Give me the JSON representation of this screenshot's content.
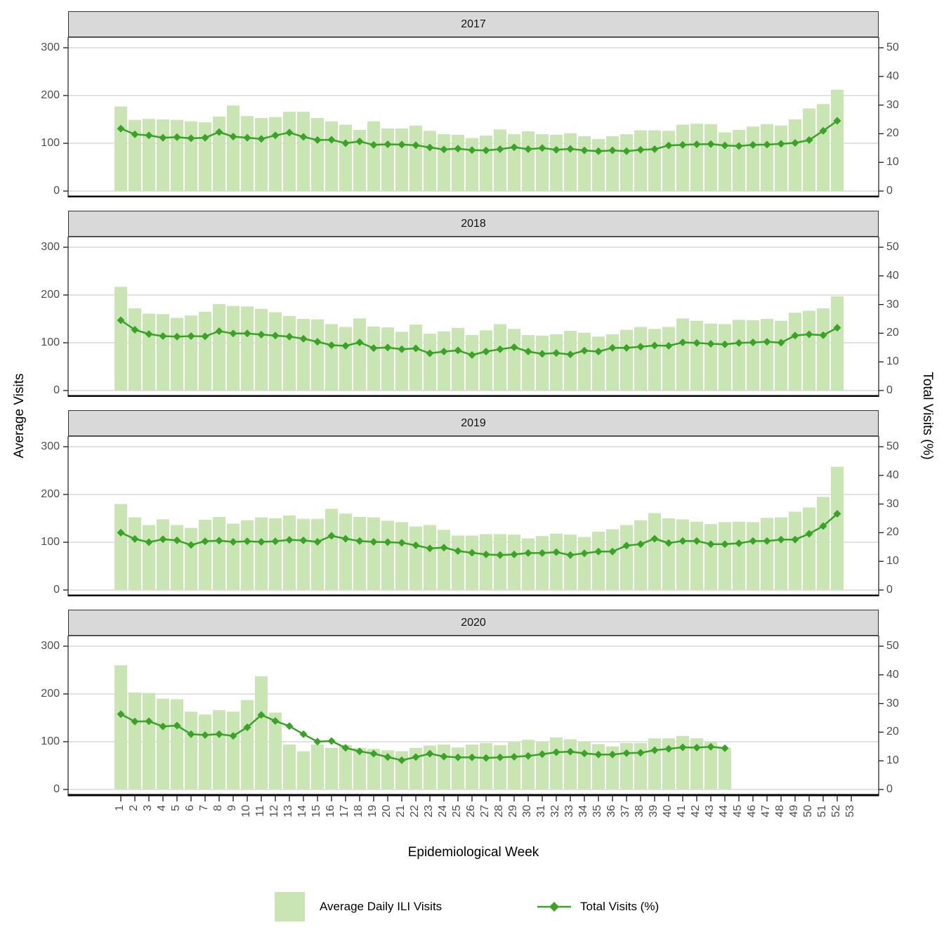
{
  "figure": {
    "x_axis_title": "Epidemiological Week",
    "y_axis_title_left": "Average Visits",
    "y_axis_title_right": "Total Visits (%)"
  },
  "legend": {
    "bar_label": "Average Daily ILI Visits",
    "line_label": "Total Visits (%)"
  },
  "colors": {
    "bar_fill": "#c9e5b3",
    "line": "#3aa327",
    "strip_bg": "#d9d9d9",
    "grid": "#d9d9d9",
    "axis_text": "#4d4d4d",
    "panel_border": "#2b2b2b",
    "axis_line": "#000000"
  },
  "chart_data": {
    "type": "bar",
    "subtype": "bar+line faceted by year",
    "xlabel": "Epidemiological Week",
    "ylabel_left": "Average Visits",
    "ylabel_right": "Total Visits (%)",
    "ylim_left": [
      0,
      300
    ],
    "ylim_right": [
      0,
      50
    ],
    "y_ticks_left": [
      "300",
      "200",
      "100",
      "0"
    ],
    "y_ticks_right": [
      "50",
      "40",
      "30",
      "20",
      "10",
      "0"
    ],
    "x_ticks": [
      "1",
      "2",
      "3",
      "4",
      "5",
      "6",
      "7",
      "8",
      "9",
      "10",
      "11",
      "12",
      "13",
      "14",
      "15",
      "16",
      "17",
      "18",
      "19",
      "20",
      "21",
      "22",
      "23",
      "24",
      "25",
      "26",
      "27",
      "28",
      "29",
      "30",
      "31",
      "32",
      "33",
      "34",
      "35",
      "36",
      "37",
      "38",
      "39",
      "40",
      "41",
      "42",
      "43",
      "44",
      "45",
      "46",
      "47",
      "48",
      "49",
      "50",
      "51",
      "52",
      "53"
    ],
    "grid": "horizontal major only",
    "legend_position": "bottom",
    "series_bar_name": "Average Daily ILI Visits",
    "series_line_name": "Total Visits (%)",
    "panels": [
      {
        "year": "2017",
        "week_start": 1,
        "bars": [
          177,
          149,
          151,
          150,
          149,
          146,
          144,
          156,
          179,
          157,
          153,
          155,
          166,
          166,
          153,
          146,
          139,
          128,
          146,
          131,
          131,
          137,
          126,
          119,
          118,
          111,
          116,
          129,
          119,
          125,
          119,
          118,
          121,
          115,
          109,
          115,
          119,
          127,
          127,
          126,
          139,
          141,
          140,
          123,
          128,
          135,
          140,
          137,
          150,
          173,
          182,
          212
        ],
        "line_pct": [
          21.8,
          19.8,
          19.4,
          18.6,
          18.8,
          18.4,
          18.6,
          20.6,
          19.0,
          18.6,
          18.2,
          19.4,
          20.4,
          18.9,
          17.8,
          17.9,
          16.7,
          17.3,
          16.1,
          16.3,
          16.2,
          16.0,
          15.2,
          14.5,
          14.8,
          14.3,
          14.2,
          14.6,
          15.3,
          14.6,
          15.0,
          14.4,
          14.7,
          14.2,
          13.9,
          14.2,
          13.9,
          14.4,
          14.6,
          15.9,
          16.1,
          16.3,
          16.4,
          15.9,
          15.7,
          16.1,
          16.2,
          16.5,
          16.8,
          17.8,
          21.0,
          24.5
        ]
      },
      {
        "year": "2018",
        "week_start": 1,
        "bars": [
          217,
          172,
          161,
          160,
          152,
          157,
          165,
          181,
          177,
          176,
          171,
          164,
          156,
          150,
          149,
          139,
          133,
          151,
          134,
          132,
          123,
          138,
          119,
          124,
          131,
          116,
          126,
          139,
          129,
          116,
          115,
          118,
          125,
          121,
          113,
          118,
          127,
          133,
          129,
          133,
          151,
          146,
          140,
          139,
          148,
          147,
          150,
          146,
          163,
          167,
          172,
          197
        ],
        "line_pct": [
          24.5,
          21.2,
          19.7,
          19.0,
          18.8,
          19.0,
          18.9,
          20.7,
          19.9,
          19.9,
          19.5,
          19.2,
          18.8,
          18.1,
          17.0,
          15.8,
          15.6,
          16.8,
          14.8,
          15.0,
          14.4,
          14.7,
          13.0,
          13.6,
          14.0,
          12.4,
          13.6,
          14.4,
          15.1,
          13.6,
          12.8,
          13.1,
          12.6,
          13.9,
          13.6,
          14.9,
          14.9,
          15.3,
          15.7,
          15.6,
          16.8,
          16.6,
          16.3,
          16.1,
          16.6,
          16.8,
          17.0,
          16.7,
          19.2,
          19.6,
          19.3,
          21.9
        ]
      },
      {
        "year": "2019",
        "week_start": 1,
        "bars": [
          180,
          152,
          136,
          148,
          136,
          130,
          147,
          153,
          139,
          146,
          152,
          150,
          156,
          149,
          149,
          170,
          160,
          153,
          152,
          145,
          142,
          133,
          136,
          126,
          114,
          114,
          117,
          117,
          116,
          108,
          113,
          118,
          116,
          111,
          122,
          127,
          136,
          146,
          161,
          150,
          148,
          143,
          138,
          142,
          143,
          142,
          151,
          152,
          164,
          173,
          195,
          258
        ],
        "line_pct": [
          20.0,
          17.8,
          16.7,
          17.7,
          17.3,
          15.7,
          17.0,
          17.2,
          16.8,
          17.0,
          16.8,
          17.0,
          17.5,
          17.3,
          16.8,
          18.9,
          17.9,
          17.1,
          16.8,
          16.7,
          16.5,
          15.6,
          14.5,
          14.8,
          13.6,
          13.0,
          12.4,
          12.2,
          12.4,
          12.9,
          12.9,
          13.2,
          12.2,
          12.8,
          13.4,
          13.4,
          15.5,
          16.0,
          17.9,
          16.4,
          17.1,
          17.1,
          16.0,
          16.0,
          16.3,
          17.1,
          17.1,
          17.6,
          17.6,
          19.6,
          22.3,
          26.6
        ]
      },
      {
        "year": "2020",
        "week_start": 1,
        "bars": [
          260,
          203,
          202,
          190,
          189,
          163,
          157,
          166,
          163,
          187,
          237,
          161,
          94,
          80,
          94,
          87,
          93,
          87,
          85,
          82,
          80,
          87,
          92,
          94,
          88,
          94,
          97,
          93,
          99,
          104,
          100,
          109,
          105,
          100,
          95,
          90,
          97,
          97,
          107,
          107,
          112,
          107,
          100,
          87
        ],
        "line_pct": [
          26.3,
          23.7,
          23.8,
          22.0,
          22.3,
          19.3,
          19.0,
          19.3,
          18.7,
          21.7,
          26.0,
          23.9,
          22.1,
          19.3,
          16.7,
          16.9,
          14.5,
          13.3,
          12.5,
          11.3,
          10.2,
          11.3,
          12.5,
          11.5,
          11.2,
          11.2,
          11.0,
          11.2,
          11.4,
          11.7,
          12.3,
          13.0,
          13.2,
          12.6,
          12.2,
          12.2,
          12.7,
          12.8,
          13.7,
          14.2,
          14.7,
          14.6,
          14.9,
          14.4
        ]
      }
    ]
  }
}
